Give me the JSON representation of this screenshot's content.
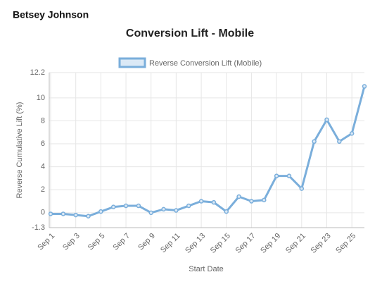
{
  "brand": "Betsey Johnson",
  "chart_data": {
    "type": "line",
    "title": "Conversion Lift - Mobile",
    "x_label": "Start Date",
    "y_label": "Reverse Cumulative Lift (%)",
    "categories": [
      "Sep 1",
      null,
      "Sep 3",
      null,
      "Sep 5",
      null,
      "Sep 7",
      null,
      "Sep 9",
      null,
      "Sep 11",
      null,
      "Sep 13",
      null,
      "Sep 15",
      null,
      "Sep 17",
      null,
      "Sep 19",
      null,
      "Sep 21",
      null,
      "Sep 23",
      null,
      "Sep 25",
      null
    ],
    "series": [
      {
        "name": "Reverse Conversion Lift (Mobile)",
        "color": "#7aaedb",
        "values": [
          -0.1,
          -0.1,
          -0.2,
          -0.3,
          0.1,
          0.5,
          0.6,
          0.6,
          0.0,
          0.3,
          0.2,
          0.6,
          1.0,
          0.9,
          0.1,
          1.4,
          1.0,
          1.1,
          3.2,
          3.2,
          2.1,
          6.2,
          8.1,
          6.2,
          6.9,
          11.0
        ]
      }
    ],
    "ylim": [
      -1.3,
      12.2
    ],
    "yticks": [
      -1.3,
      0,
      2,
      4,
      6,
      8,
      10,
      12.2
    ],
    "grid": true,
    "legend": "top"
  }
}
